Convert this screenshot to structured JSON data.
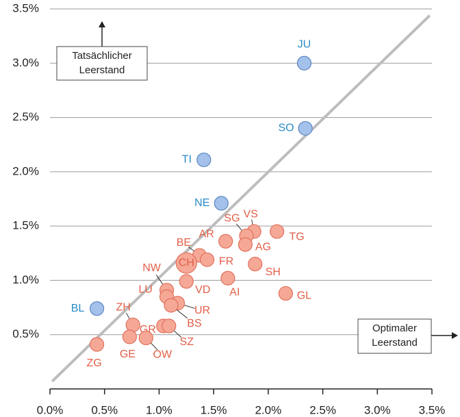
{
  "chart_data": {
    "type": "scatter",
    "xlim": [
      0,
      3.5
    ],
    "ylim": [
      0,
      3.5
    ],
    "xticks": [
      {
        "value": 0,
        "label": "0.0%"
      },
      {
        "value": 0.5,
        "label": "0.5%"
      },
      {
        "value": 1,
        "label": "1.0%"
      },
      {
        "value": 1.5,
        "label": "1.5%"
      },
      {
        "value": 2,
        "label": "2.0%"
      },
      {
        "value": 2.5,
        "label": "2.5%"
      },
      {
        "value": 3,
        "label": "3.0%"
      },
      {
        "value": 3.5,
        "label": "3.5%"
      }
    ],
    "yticks": [
      {
        "value": 0.5,
        "label": "0.5%"
      },
      {
        "value": 1,
        "label": "1.0%"
      },
      {
        "value": 1.5,
        "label": "1.5%"
      },
      {
        "value": 2,
        "label": "2.0%"
      },
      {
        "value": 2.5,
        "label": "2.5%"
      },
      {
        "value": 3,
        "label": "3.0%"
      },
      {
        "value": 3.5,
        "label": "3.5%"
      }
    ],
    "grid": true,
    "trend_line": {
      "color": "#bdbdbd",
      "x": [
        0.02,
        3.48
      ],
      "values": [
        0.07,
        3.44
      ]
    },
    "series": [
      {
        "color": "#a3c1ea",
        "edge_color": "#5b86c2",
        "label_color": "#2a8bc6",
        "marker_size": 10,
        "labels": [
          "JU",
          "SO",
          "TI",
          "NE",
          "BL"
        ],
        "x": [
          2.33,
          2.34,
          1.41,
          1.57,
          0.43
        ],
        "values": [
          3.0,
          2.4,
          2.11,
          1.71,
          0.74
        ]
      },
      {
        "color": "#f6a896",
        "edge_color": "#e0705c",
        "label_color": "#e25f48",
        "marker_size": 10,
        "labels": [
          "VS",
          "SG",
          "TG",
          "AR",
          "AG",
          "BE",
          "FR",
          "SH",
          "NW",
          "VD",
          "AI",
          "GL",
          "LU",
          "UR",
          "ZH",
          "GR",
          "BS",
          "SZ",
          "GE",
          "OW",
          "ZG"
        ],
        "x": [
          1.87,
          1.8,
          2.08,
          1.61,
          1.79,
          1.37,
          1.44,
          1.88,
          1.07,
          1.25,
          1.63,
          2.16,
          1.07,
          1.17,
          0.76,
          1.04,
          1.11,
          1.09,
          0.73,
          0.88,
          0.43
        ],
        "values": [
          1.45,
          1.41,
          1.45,
          1.36,
          1.33,
          1.23,
          1.19,
          1.15,
          0.91,
          0.99,
          1.02,
          0.88,
          0.85,
          0.79,
          0.59,
          0.58,
          0.77,
          0.58,
          0.48,
          0.47,
          0.41
        ]
      },
      {
        "color": "#f6a896",
        "edge_color": "#e0705c",
        "label_color": "#e25f48",
        "marker_size": 15,
        "labels": [
          "CH"
        ],
        "x": [
          1.25
        ],
        "values": [
          1.16
        ]
      }
    ],
    "annotations": [
      {
        "lines": [
          "Tatsächlicher",
          "Leerstand"
        ]
      },
      {
        "lines": [
          "Optimaler",
          "Leerstand"
        ]
      }
    ]
  }
}
